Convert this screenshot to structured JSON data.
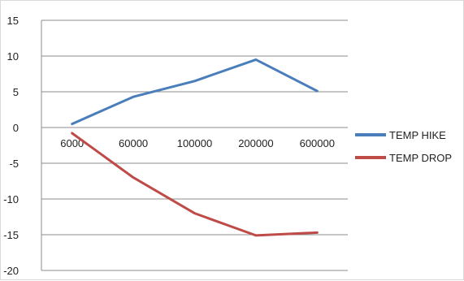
{
  "chart_data": {
    "type": "line",
    "categories": [
      "6000",
      "60000",
      "100000",
      "200000",
      "600000"
    ],
    "series": [
      {
        "name": "TEMP HIKE",
        "color": "#4a7ebb",
        "values": [
          0.5,
          4.3,
          6.5,
          9.5,
          5.1
        ]
      },
      {
        "name": "TEMP DROP",
        "color": "#be4b48",
        "values": [
          -0.8,
          -7.0,
          -12.0,
          -15.1,
          -14.7
        ]
      }
    ],
    "ylim": [
      -20,
      15
    ],
    "yticks": [
      15,
      10,
      5,
      0,
      -5,
      -10,
      -15,
      -20
    ],
    "grid": true,
    "legend": "right",
    "title": "",
    "xlabel": "",
    "ylabel": ""
  }
}
